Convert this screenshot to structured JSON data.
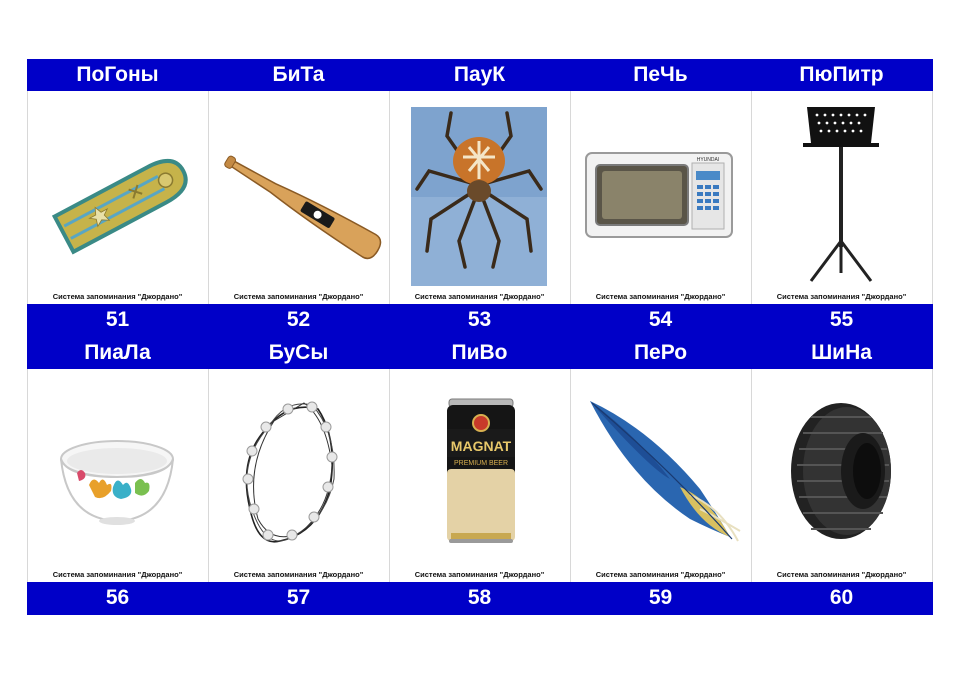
{
  "cards": [
    {
      "title": "ПоГоны",
      "caption": "Система запоминания \"Джордано\"",
      "number": "51",
      "icon": "epaulette-icon"
    },
    {
      "title": "БиТа",
      "caption": "Система запоминания \"Джордано\"",
      "number": "52",
      "icon": "baseball-bat-icon"
    },
    {
      "title": "ПауК",
      "caption": "Система запоминания \"Джордано\"",
      "number": "53",
      "icon": "spider-icon"
    },
    {
      "title": "ПеЧь",
      "caption": "Система запоминания \"Джордано\"",
      "number": "54",
      "icon": "microwave-icon"
    },
    {
      "title": "ПюПитр",
      "caption": "Система запоминания \"Джордано\"",
      "number": "55",
      "icon": "music-stand-icon"
    },
    {
      "title": "ПиаЛа",
      "caption": "Система запоминания \"Джордано\"",
      "number": "56",
      "icon": "bowl-icon"
    },
    {
      "title": "БуСы",
      "caption": "Система запоминания \"Джордано\"",
      "number": "57",
      "icon": "beads-icon"
    },
    {
      "title": "ПиВо",
      "caption": "Система запоминания \"Джордано\"",
      "number": "58",
      "icon": "beer-can-icon"
    },
    {
      "title": "ПеРо",
      "caption": "Система запоминания \"Джордано\"",
      "number": "59",
      "icon": "feather-icon"
    },
    {
      "title": "ШиНа",
      "caption": "Система запоминания \"Джордано\"",
      "number": "60",
      "icon": "tire-icon"
    }
  ],
  "pictures": {
    "epaulette_brand": "",
    "bat_brand": "",
    "microwave_brand": "HYUNDAI",
    "beer_brand": "MAGNAT",
    "beer_sub": "PREMIUM BEER"
  },
  "colors": {
    "bar": "#0000c8",
    "text": "#ffffff"
  }
}
